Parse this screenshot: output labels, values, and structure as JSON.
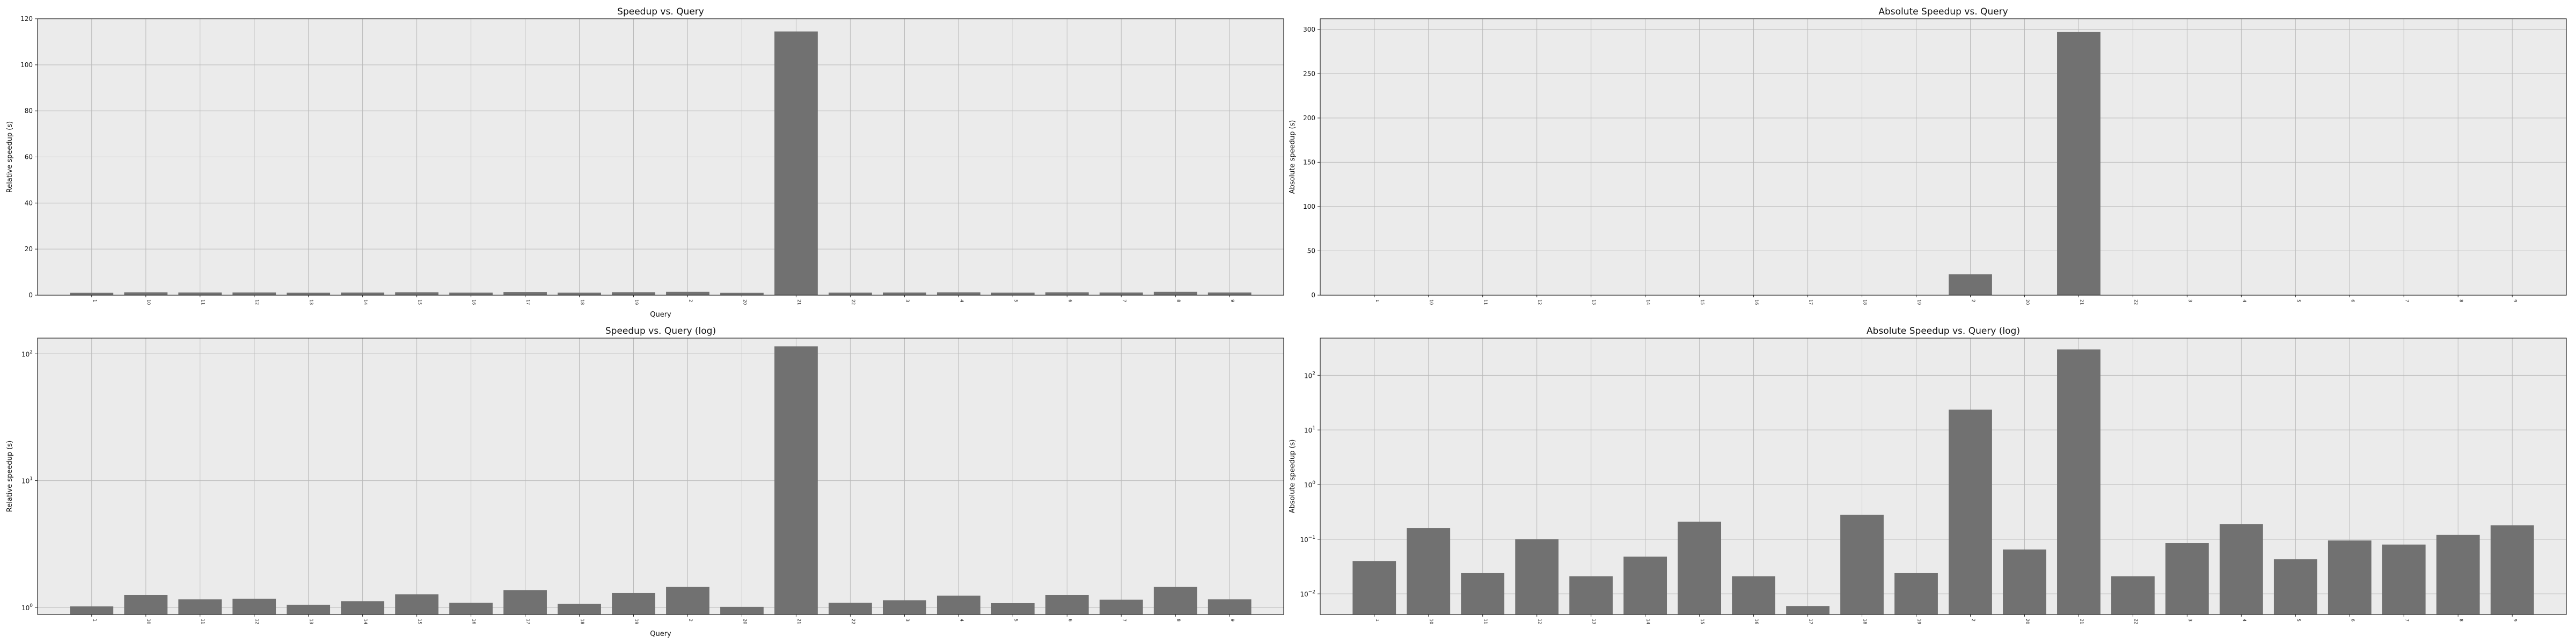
{
  "chart_data": [
    {
      "id": "speedup",
      "type": "bar",
      "title": "Speedup vs. Query",
      "xlabel": "Query",
      "ylabel": "Relative speedup (s)",
      "scale": "linear",
      "ylim": [
        0,
        120
      ],
      "yticks": [
        "0",
        "20",
        "40",
        "60",
        "80",
        "100",
        "120"
      ],
      "grid": true,
      "categories": [
        "1",
        "10",
        "11",
        "12",
        "13",
        "14",
        "15",
        "16",
        "17",
        "18",
        "19",
        "2",
        "20",
        "21",
        "22",
        "3",
        "4",
        "5",
        "6",
        "7",
        "8",
        "9"
      ],
      "values": [
        1.02,
        1.25,
        1.16,
        1.17,
        1.05,
        1.12,
        1.27,
        1.09,
        1.37,
        1.07,
        1.3,
        1.45,
        1.01,
        114.5,
        1.09,
        1.14,
        1.24,
        1.08,
        1.25,
        1.15,
        1.45,
        1.16
      ]
    },
    {
      "id": "absolute_speedup",
      "type": "bar",
      "title": "Absolute Speedup vs. Query",
      "xlabel": "",
      "ylabel": "Absolute speedup (s)",
      "scale": "linear",
      "ylim": [
        0,
        312
      ],
      "yticks": [
        "0",
        "50",
        "100",
        "150",
        "200",
        "250",
        "300"
      ],
      "grid": true,
      "categories": [
        "1",
        "10",
        "11",
        "12",
        "13",
        "14",
        "15",
        "16",
        "17",
        "18",
        "19",
        "2",
        "20",
        "21",
        "22",
        "3",
        "4",
        "5",
        "6",
        "7",
        "8",
        "9"
      ],
      "values": [
        0.04,
        0.16,
        0.024,
        0.1,
        0.021,
        0.048,
        0.21,
        0.021,
        0.006,
        0.28,
        0.024,
        23.5,
        0.065,
        297.0,
        0.021,
        0.085,
        0.19,
        0.043,
        0.095,
        0.08,
        0.12,
        0.18
      ]
    },
    {
      "id": "speedup_log",
      "type": "bar",
      "title": "Speedup vs. Query (log)",
      "xlabel": "Query",
      "ylabel": "Relative speedup (s)",
      "scale": "log",
      "ylim": [
        0.88,
        133
      ],
      "yticks": [
        {
          "base": "10",
          "exp": "0"
        },
        {
          "base": "10",
          "exp": "1"
        },
        {
          "base": "10",
          "exp": "2"
        }
      ],
      "grid": true,
      "categories": [
        "1",
        "10",
        "11",
        "12",
        "13",
        "14",
        "15",
        "16",
        "17",
        "18",
        "19",
        "2",
        "20",
        "21",
        "22",
        "3",
        "4",
        "5",
        "6",
        "7",
        "8",
        "9"
      ],
      "values": [
        1.02,
        1.25,
        1.16,
        1.17,
        1.05,
        1.12,
        1.27,
        1.09,
        1.37,
        1.07,
        1.3,
        1.45,
        1.01,
        114.5,
        1.09,
        1.14,
        1.24,
        1.08,
        1.25,
        1.15,
        1.45,
        1.16
      ]
    },
    {
      "id": "absolute_speedup_log",
      "type": "bar",
      "title": "Absolute Speedup vs. Query (log)",
      "xlabel": "",
      "ylabel": "Absolute speedup (s)",
      "scale": "log",
      "ylim": [
        0.0042,
        480
      ],
      "yticks": [
        {
          "base": "10",
          "exp": "−2"
        },
        {
          "base": "10",
          "exp": "−1"
        },
        {
          "base": "10",
          "exp": "0"
        },
        {
          "base": "10",
          "exp": "1"
        },
        {
          "base": "10",
          "exp": "2"
        }
      ],
      "grid": true,
      "categories": [
        "1",
        "10",
        "11",
        "12",
        "13",
        "14",
        "15",
        "16",
        "17",
        "18",
        "19",
        "2",
        "20",
        "21",
        "22",
        "3",
        "4",
        "5",
        "6",
        "7",
        "8",
        "9"
      ],
      "values": [
        0.04,
        0.16,
        0.024,
        0.1,
        0.021,
        0.048,
        0.21,
        0.021,
        0.006,
        0.28,
        0.024,
        23.5,
        0.065,
        297.0,
        0.021,
        0.085,
        0.19,
        0.043,
        0.095,
        0.08,
        0.12,
        0.18
      ]
    }
  ]
}
